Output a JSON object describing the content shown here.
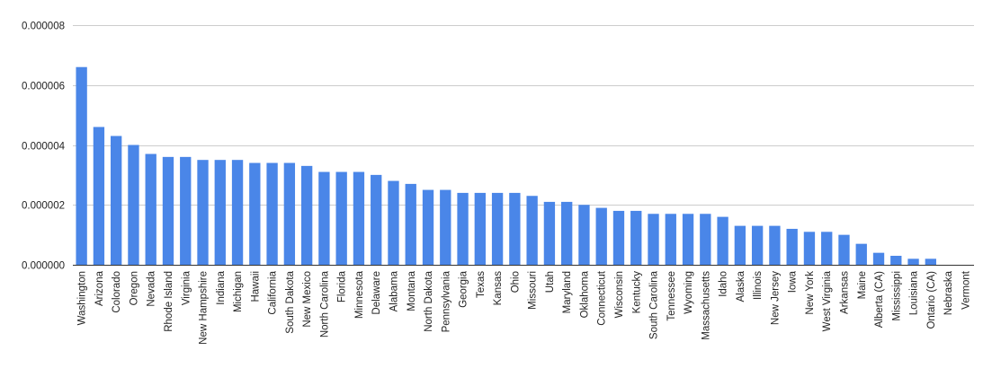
{
  "chart_data": {
    "type": "bar",
    "title": "",
    "xlabel": "",
    "ylabel": "",
    "ylim": [
      0,
      8e-06
    ],
    "y_ticks": [
      "0.000000",
      "0.000002",
      "0.000004",
      "0.000006",
      "0.000008"
    ],
    "grid": true,
    "legend": "none",
    "bar_color": "#4a86e8",
    "categories": [
      "Washington",
      "Arizona",
      "Colorado",
      "Oregon",
      "Nevada",
      "Rhode Island",
      "Virginia",
      "New Hampshire",
      "Indiana",
      "Michigan",
      "Hawaii",
      "California",
      "South Dakota",
      "New Mexico",
      "North Carolina",
      "Florida",
      "Minnesota",
      "Delaware",
      "Alabama",
      "Montana",
      "North Dakota",
      "Pennsylvania",
      "Georgia",
      "Texas",
      "Kansas",
      "Ohio",
      "Missouri",
      "Utah",
      "Maryland",
      "Oklahoma",
      "Connecticut",
      "Wisconsin",
      "Kentucky",
      "South Carolina",
      "Tennessee",
      "Wyoming",
      "Massachusetts",
      "Idaho",
      "Alaska",
      "Illinois",
      "New Jersey",
      "Iowa",
      "New York",
      "West Virginia",
      "Arkansas",
      "Maine",
      "Alberta (CA)",
      "Mississippi",
      "Louisiana",
      "Ontario (CA)",
      "Nebraska",
      "Vermont"
    ],
    "values": [
      6.6e-06,
      4.6e-06,
      4.3e-06,
      4e-06,
      3.7e-06,
      3.6e-06,
      3.6e-06,
      3.5e-06,
      3.5e-06,
      3.5e-06,
      3.4e-06,
      3.4e-06,
      3.4e-06,
      3.3e-06,
      3.1e-06,
      3.1e-06,
      3.1e-06,
      3e-06,
      2.8e-06,
      2.7e-06,
      2.5e-06,
      2.5e-06,
      2.4e-06,
      2.4e-06,
      2.4e-06,
      2.4e-06,
      2.3e-06,
      2.1e-06,
      2.1e-06,
      2e-06,
      1.9e-06,
      1.8e-06,
      1.8e-06,
      1.7e-06,
      1.7e-06,
      1.7e-06,
      1.7e-06,
      1.6e-06,
      1.3e-06,
      1.3e-06,
      1.3e-06,
      1.2e-06,
      1.1e-06,
      1.1e-06,
      1e-06,
      7e-07,
      4e-07,
      3e-07,
      2e-07,
      2e-07,
      0,
      0
    ]
  }
}
